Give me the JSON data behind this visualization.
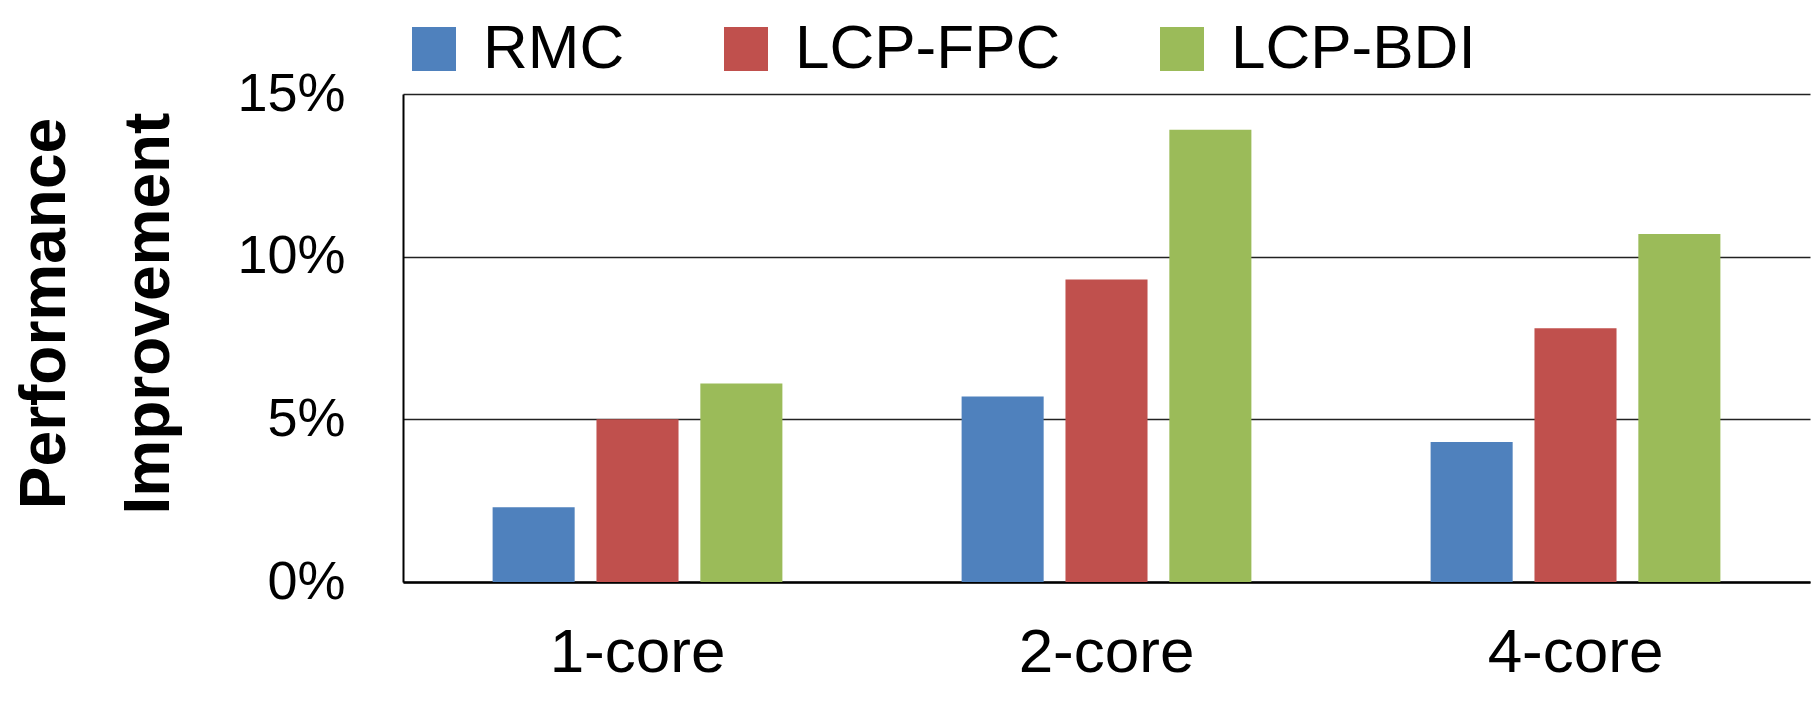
{
  "chart_data": {
    "type": "bar",
    "ylabel": "Performance Improvement",
    "categories": [
      "1-core",
      "2-core",
      "4-core"
    ],
    "series": [
      {
        "name": "RMC",
        "color": "#4f81bd",
        "values": [
          2.3,
          5.7,
          4.3
        ]
      },
      {
        "name": "LCP-FPC",
        "color": "#c0504d",
        "values": [
          5.0,
          9.3,
          7.8
        ]
      },
      {
        "name": "LCP-BDI",
        "color": "#9bbb59",
        "values": [
          6.1,
          13.9,
          10.7
        ]
      }
    ],
    "ylim": [
      0,
      15
    ],
    "yticks": [
      {
        "value": 0,
        "label": "0%"
      },
      {
        "value": 5,
        "label": "5%"
      },
      {
        "value": 10,
        "label": "10%"
      },
      {
        "value": 15,
        "label": "15%"
      }
    ],
    "grid": "y",
    "legend": "top"
  }
}
